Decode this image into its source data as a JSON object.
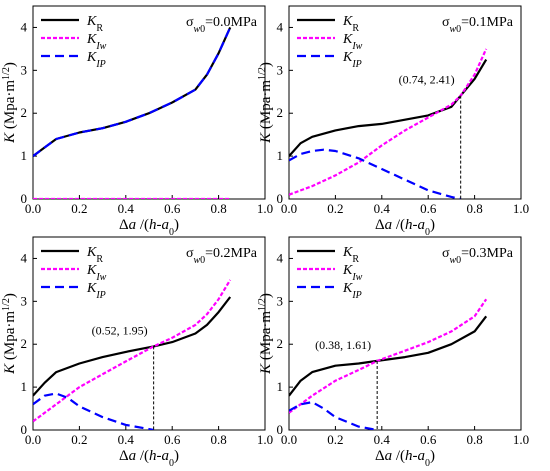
{
  "figure": {
    "panel_count": 4
  },
  "chart_data": [
    {
      "type": "line",
      "condition": "σw0=0.0MPa",
      "xlabel": "Δa /(h-a0)",
      "ylabel": "K (Mpa·m1/2)",
      "xlim": [
        0,
        1.0
      ],
      "ylim": [
        0,
        4.5
      ],
      "xticks": [
        "0.0",
        "0.2",
        "0.4",
        "0.6",
        "0.8",
        "1.0"
      ],
      "yticks": [
        "0",
        "1",
        "2",
        "3",
        "4"
      ],
      "legend_position": "top-left",
      "series": [
        {
          "name": "KR",
          "color": "#000000",
          "dash": "solid",
          "x": [
            0,
            0.05,
            0.1,
            0.2,
            0.3,
            0.4,
            0.5,
            0.6,
            0.7,
            0.75,
            0.8,
            0.85
          ],
          "y": [
            1.0,
            1.2,
            1.4,
            1.55,
            1.65,
            1.8,
            2.0,
            2.25,
            2.55,
            2.9,
            3.4,
            4.0
          ]
        },
        {
          "name": "KIw",
          "color": "#ff00ff",
          "dash": "dotted",
          "x": [
            0,
            0.85
          ],
          "y": [
            0,
            0
          ]
        },
        {
          "name": "KIP",
          "color": "#0000ff",
          "dash": "dashed",
          "x": [
            0,
            0.05,
            0.1,
            0.2,
            0.3,
            0.4,
            0.5,
            0.6,
            0.7,
            0.75,
            0.8,
            0.85
          ],
          "y": [
            1.0,
            1.2,
            1.4,
            1.55,
            1.65,
            1.8,
            2.0,
            2.25,
            2.55,
            2.9,
            3.4,
            4.0
          ]
        }
      ],
      "annotation": null
    },
    {
      "type": "line",
      "condition": "σw0=0.1MPa",
      "xlabel": "Δa /(h-a0)",
      "ylabel": "K (Mpa·m1/2)",
      "xlim": [
        0,
        1.0
      ],
      "ylim": [
        0,
        4.5
      ],
      "xticks": [
        "0.0",
        "0.2",
        "0.4",
        "0.6",
        "0.8",
        "1.0"
      ],
      "yticks": [
        "0",
        "1",
        "2",
        "3",
        "4"
      ],
      "legend_position": "top-left",
      "series": [
        {
          "name": "KR",
          "color": "#000000",
          "dash": "solid",
          "x": [
            0,
            0.05,
            0.1,
            0.2,
            0.3,
            0.4,
            0.5,
            0.6,
            0.7,
            0.74,
            0.8,
            0.85
          ],
          "y": [
            1.0,
            1.3,
            1.45,
            1.6,
            1.7,
            1.75,
            1.85,
            1.95,
            2.15,
            2.41,
            2.8,
            3.25
          ]
        },
        {
          "name": "KIw",
          "color": "#ff00ff",
          "dash": "dotted",
          "x": [
            0,
            0.1,
            0.2,
            0.3,
            0.4,
            0.5,
            0.6,
            0.7,
            0.74,
            0.8,
            0.85
          ],
          "y": [
            0.1,
            0.3,
            0.55,
            0.85,
            1.25,
            1.6,
            1.9,
            2.2,
            2.41,
            2.9,
            3.5
          ]
        },
        {
          "name": "KIP",
          "color": "#0000ff",
          "dash": "dashed",
          "x": [
            0,
            0.05,
            0.1,
            0.15,
            0.2,
            0.3,
            0.4,
            0.5,
            0.6,
            0.7,
            0.74
          ],
          "y": [
            0.9,
            1.05,
            1.12,
            1.15,
            1.12,
            0.95,
            0.7,
            0.45,
            0.2,
            0.05,
            0.0
          ]
        }
      ],
      "annotation": {
        "label": "(0.74, 2.41)",
        "x": 0.74,
        "y": 2.41
      }
    },
    {
      "type": "line",
      "condition": "σw0=0.2MPa",
      "xlabel": "Δa /(h-a0)",
      "ylabel": "K (Mpa·m1/2)",
      "xlim": [
        0,
        1.0
      ],
      "ylim": [
        0,
        4.5
      ],
      "xticks": [
        "0.0",
        "0.2",
        "0.4",
        "0.6",
        "0.8",
        "1.0"
      ],
      "yticks": [
        "0",
        "1",
        "2",
        "3",
        "4"
      ],
      "legend_position": "top-left",
      "series": [
        {
          "name": "KR",
          "color": "#000000",
          "dash": "solid",
          "x": [
            0,
            0.05,
            0.1,
            0.2,
            0.3,
            0.4,
            0.52,
            0.6,
            0.7,
            0.75,
            0.8,
            0.85
          ],
          "y": [
            0.8,
            1.1,
            1.35,
            1.55,
            1.7,
            1.82,
            1.95,
            2.05,
            2.25,
            2.45,
            2.75,
            3.1
          ]
        },
        {
          "name": "KIw",
          "color": "#ff00ff",
          "dash": "dotted",
          "x": [
            0,
            0.1,
            0.2,
            0.3,
            0.4,
            0.52,
            0.6,
            0.7,
            0.75,
            0.8,
            0.85
          ],
          "y": [
            0.2,
            0.6,
            1.0,
            1.3,
            1.6,
            1.95,
            2.15,
            2.45,
            2.7,
            3.05,
            3.5
          ]
        },
        {
          "name": "KIP",
          "color": "#0000ff",
          "dash": "dashed",
          "x": [
            0,
            0.05,
            0.1,
            0.15,
            0.2,
            0.3,
            0.4,
            0.5,
            0.52
          ],
          "y": [
            0.6,
            0.8,
            0.85,
            0.75,
            0.55,
            0.3,
            0.12,
            0.02,
            0.0
          ]
        }
      ],
      "annotation": {
        "label": "(0.52, 1.95)",
        "x": 0.52,
        "y": 1.95
      }
    },
    {
      "type": "line",
      "condition": "σw0=0.3MPa",
      "xlabel": "Δa /(h-a0)",
      "ylabel": "K (Mpa·m1/2)",
      "xlim": [
        0,
        1.0
      ],
      "ylim": [
        0,
        4.5
      ],
      "xticks": [
        "0.0",
        "0.2",
        "0.4",
        "0.6",
        "0.8",
        "1.0"
      ],
      "yticks": [
        "0",
        "1",
        "2",
        "3",
        "4"
      ],
      "legend_position": "top-left",
      "series": [
        {
          "name": "KR",
          "color": "#000000",
          "dash": "solid",
          "x": [
            0,
            0.05,
            0.1,
            0.2,
            0.3,
            0.38,
            0.5,
            0.6,
            0.7,
            0.8,
            0.85
          ],
          "y": [
            0.8,
            1.15,
            1.35,
            1.5,
            1.55,
            1.61,
            1.7,
            1.8,
            2.0,
            2.3,
            2.65
          ]
        },
        {
          "name": "KIw",
          "color": "#ff00ff",
          "dash": "dotted",
          "x": [
            0,
            0.1,
            0.2,
            0.3,
            0.38,
            0.5,
            0.6,
            0.7,
            0.8,
            0.85
          ],
          "y": [
            0.4,
            0.8,
            1.15,
            1.4,
            1.61,
            1.85,
            2.05,
            2.3,
            2.65,
            3.05
          ]
        },
        {
          "name": "KIP",
          "color": "#0000ff",
          "dash": "dashed",
          "x": [
            0,
            0.05,
            0.1,
            0.15,
            0.2,
            0.3,
            0.38
          ],
          "y": [
            0.45,
            0.6,
            0.65,
            0.5,
            0.3,
            0.08,
            0.0
          ]
        }
      ],
      "annotation": {
        "label": "(0.38, 1.61)",
        "x": 0.38,
        "y": 1.61
      }
    }
  ]
}
